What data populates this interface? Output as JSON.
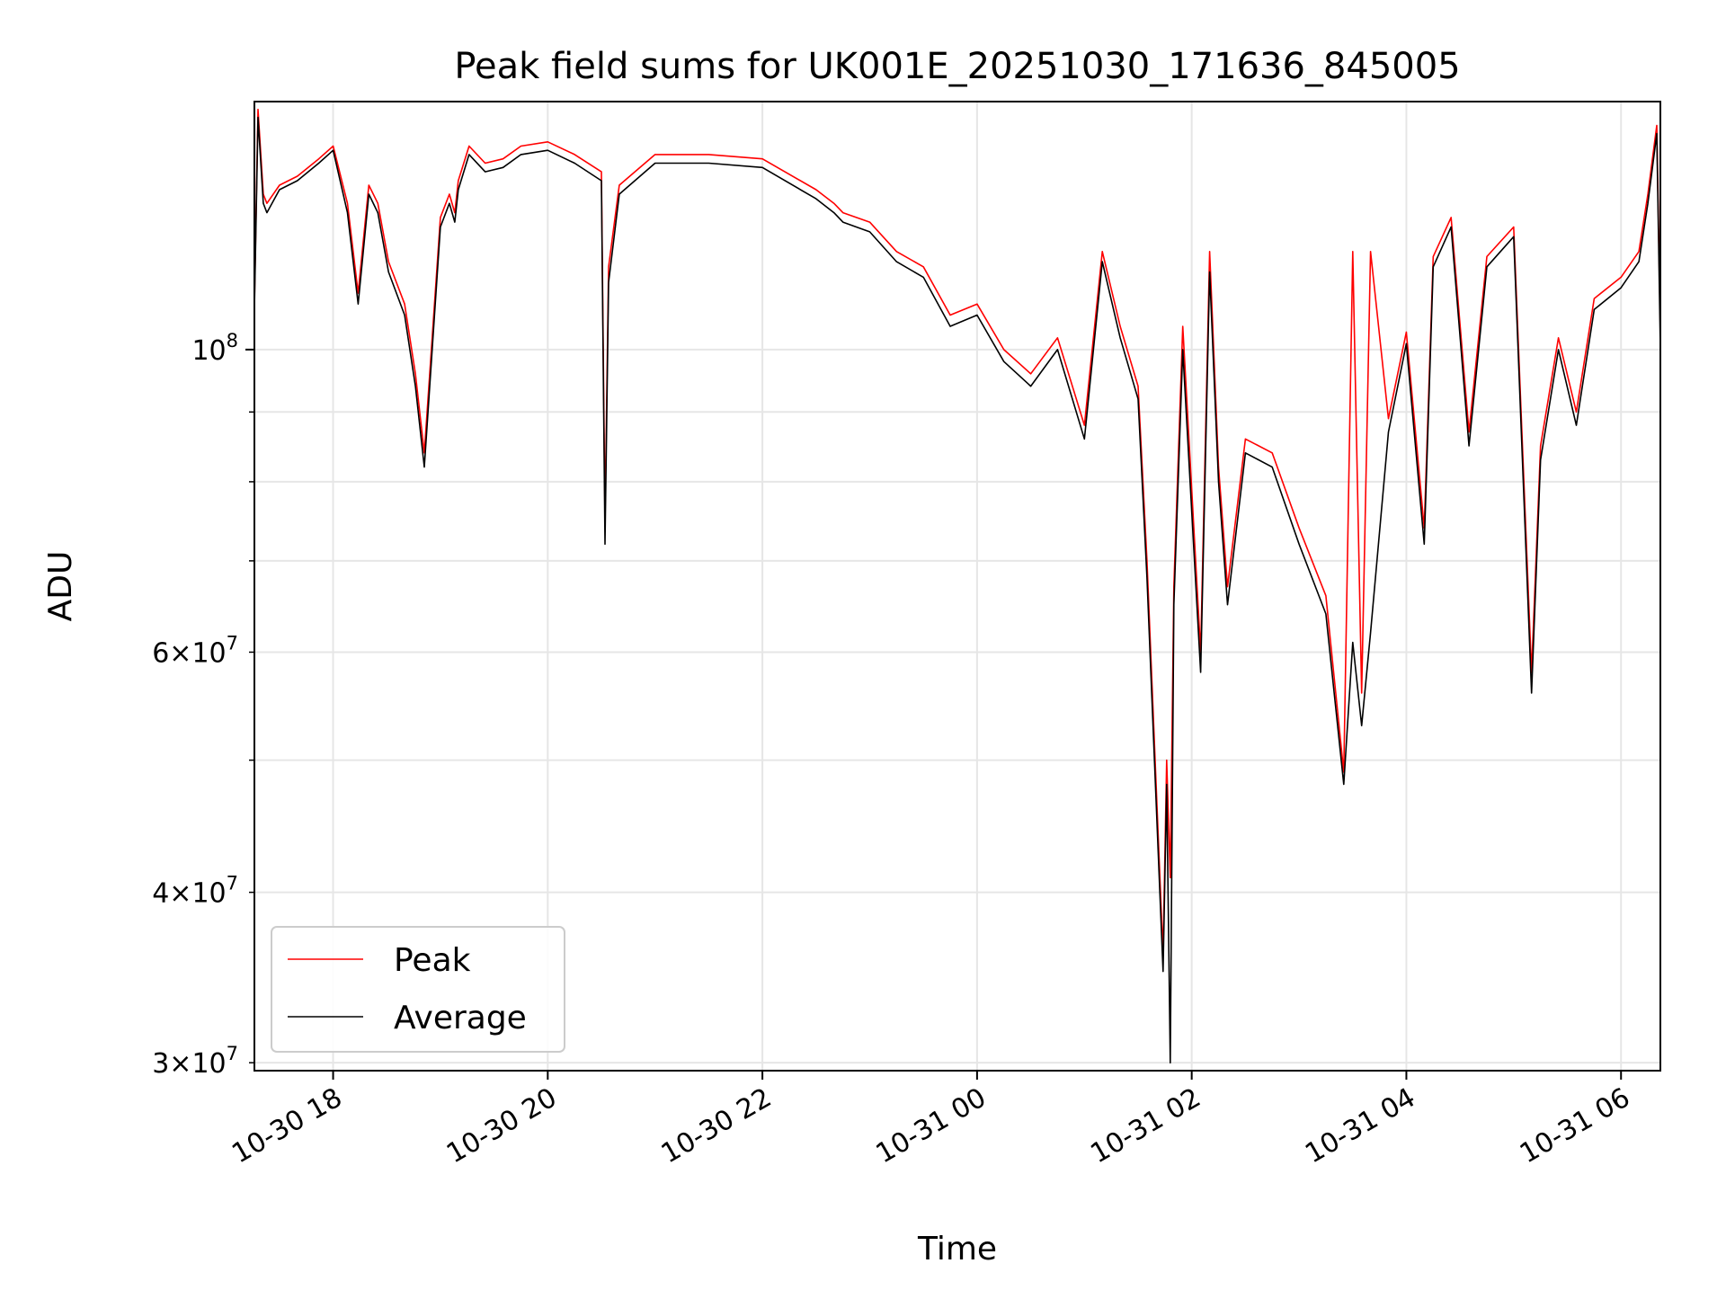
{
  "chart_data": {
    "type": "line",
    "title": "Peak field sums for UK001E_20251030_171636_845005",
    "xlabel": "Time",
    "ylabel": "ADU",
    "y_scale": "log",
    "grid": true,
    "legend_position": "lower-left",
    "xlim": [
      "2025-10-30 17:16",
      "2025-10-31 06:22"
    ],
    "ylim": [
      29600000,
      152000000
    ],
    "x_ticks": [
      {
        "value": "2025-10-30 18:00",
        "label": "10-30 18"
      },
      {
        "value": "2025-10-30 20:00",
        "label": "10-30 20"
      },
      {
        "value": "2025-10-30 22:00",
        "label": "10-30 22"
      },
      {
        "value": "2025-10-31 00:00",
        "label": "10-31 00"
      },
      {
        "value": "2025-10-31 02:00",
        "label": "10-31 02"
      },
      {
        "value": "2025-10-31 04:00",
        "label": "10-31 04"
      },
      {
        "value": "2025-10-31 06:00",
        "label": "10-31 06"
      }
    ],
    "y_major_ticks": [
      {
        "value": 100000000,
        "base": "10",
        "exp": "8"
      }
    ],
    "y_minor_ticks": [
      {
        "value": 30000000,
        "coef": "3",
        "base": "10",
        "exp": "7"
      },
      {
        "value": 40000000,
        "coef": "4",
        "base": "10",
        "exp": "7"
      },
      {
        "value": 50000000
      },
      {
        "value": 60000000,
        "coef": "6",
        "base": "10",
        "exp": "7"
      },
      {
        "value": 70000000
      },
      {
        "value": 80000000
      },
      {
        "value": 90000000
      }
    ],
    "x": [
      "2025-10-30 17:16",
      "2025-10-30 17:18",
      "2025-10-30 17:21",
      "2025-10-30 17:23",
      "2025-10-30 17:30",
      "2025-10-30 17:40",
      "2025-10-30 17:52",
      "2025-10-30 18:00",
      "2025-10-30 18:08",
      "2025-10-30 18:14",
      "2025-10-30 18:20",
      "2025-10-30 18:25",
      "2025-10-30 18:31",
      "2025-10-30 18:40",
      "2025-10-30 18:46",
      "2025-10-30 18:51",
      "2025-10-30 19:00",
      "2025-10-30 19:05",
      "2025-10-30 19:08",
      "2025-10-30 19:10",
      "2025-10-30 19:16",
      "2025-10-30 19:25",
      "2025-10-30 19:35",
      "2025-10-30 19:45",
      "2025-10-30 20:00",
      "2025-10-30 20:15",
      "2025-10-30 20:30",
      "2025-10-30 20:32",
      "2025-10-30 20:34",
      "2025-10-30 20:40",
      "2025-10-30 21:00",
      "2025-10-30 21:30",
      "2025-10-30 22:00",
      "2025-10-30 22:30",
      "2025-10-30 22:40",
      "2025-10-30 22:45",
      "2025-10-30 23:00",
      "2025-10-30 23:15",
      "2025-10-30 23:30",
      "2025-10-30 23:45",
      "2025-10-31 00:00",
      "2025-10-31 00:15",
      "2025-10-31 00:30",
      "2025-10-31 00:45",
      "2025-10-31 01:00",
      "2025-10-31 01:10",
      "2025-10-31 01:20",
      "2025-10-31 01:30",
      "2025-10-31 01:35",
      "2025-10-31 01:44",
      "2025-10-31 01:46",
      "2025-10-31 01:48",
      "2025-10-31 01:50",
      "2025-10-31 01:55",
      "2025-10-31 02:05",
      "2025-10-31 02:10",
      "2025-10-31 02:15",
      "2025-10-31 02:20",
      "2025-10-31 02:30",
      "2025-10-31 02:45",
      "2025-10-31 03:00",
      "2025-10-31 03:15",
      "2025-10-31 03:25",
      "2025-10-31 03:30",
      "2025-10-31 03:35",
      "2025-10-31 03:40",
      "2025-10-31 03:50",
      "2025-10-31 04:00",
      "2025-10-31 04:10",
      "2025-10-31 04:15",
      "2025-10-31 04:25",
      "2025-10-31 04:35",
      "2025-10-31 04:45",
      "2025-10-31 05:00",
      "2025-10-31 05:10",
      "2025-10-31 05:15",
      "2025-10-31 05:25",
      "2025-10-31 05:35",
      "2025-10-31 05:45",
      "2025-10-31 06:00",
      "2025-10-31 06:10",
      "2025-10-31 06:15",
      "2025-10-31 06:20",
      "2025-10-31 06:22"
    ],
    "series": [
      {
        "name": "Peak",
        "color": "#ff0000",
        "values": [
          108000000,
          150000000,
          130000000,
          128000000,
          132000000,
          134000000,
          138000000,
          141000000,
          128000000,
          110000000,
          132000000,
          128000000,
          116000000,
          108000000,
          96000000,
          84000000,
          125000000,
          130000000,
          126000000,
          133000000,
          141000000,
          137000000,
          138000000,
          141000000,
          142000000,
          139000000,
          135000000,
          75000000,
          115000000,
          132000000,
          139000000,
          139000000,
          138000000,
          131000000,
          128000000,
          126000000,
          124000000,
          118000000,
          115000000,
          106000000,
          108000000,
          100000000,
          96000000,
          102000000,
          88000000,
          118000000,
          104000000,
          94000000,
          70000000,
          36000000,
          50000000,
          41000000,
          67000000,
          104000000,
          60000000,
          118000000,
          82000000,
          67000000,
          86000000,
          84000000,
          74000000,
          66000000,
          49000000,
          118000000,
          56000000,
          118000000,
          89000000,
          103000000,
          74000000,
          117000000,
          125000000,
          87000000,
          117000000,
          123000000,
          58000000,
          85000000,
          102000000,
          90000000,
          109000000,
          113000000,
          118000000,
          130000000,
          146000000,
          103000000
        ]
      },
      {
        "name": "Average",
        "color": "#000000",
        "values": [
          107000000,
          148000000,
          128000000,
          126000000,
          131000000,
          133000000,
          137000000,
          140000000,
          126000000,
          108000000,
          130000000,
          126000000,
          114000000,
          106000000,
          94000000,
          82000000,
          123000000,
          128000000,
          124000000,
          131000000,
          139000000,
          135000000,
          136000000,
          139000000,
          140000000,
          137000000,
          133000000,
          72000000,
          112000000,
          130000000,
          137000000,
          137000000,
          136000000,
          129000000,
          126000000,
          124000000,
          122000000,
          116000000,
          113000000,
          104000000,
          106000000,
          98000000,
          94000000,
          100000000,
          86000000,
          116000000,
          102000000,
          92000000,
          68000000,
          35000000,
          48000000,
          30000000,
          65000000,
          100000000,
          58000000,
          114000000,
          80000000,
          65000000,
          84000000,
          82000000,
          72000000,
          64000000,
          48000000,
          61000000,
          53000000,
          62000000,
          87000000,
          101000000,
          72000000,
          115000000,
          123000000,
          85000000,
          115000000,
          121000000,
          56000000,
          83000000,
          100000000,
          88000000,
          107000000,
          111000000,
          116000000,
          128000000,
          144000000,
          100000000
        ]
      }
    ]
  }
}
